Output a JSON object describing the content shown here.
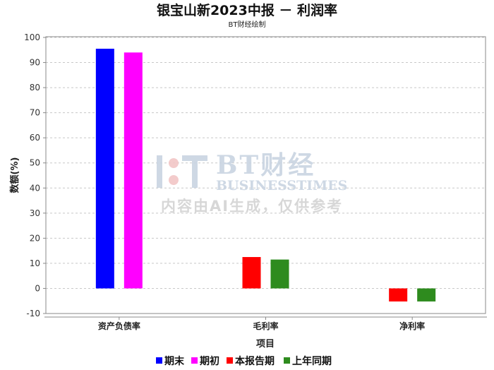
{
  "chart_data": {
    "type": "bar",
    "title": "银宝山新2023中报 － 利润率",
    "subtitle": "BT财经绘制",
    "xlabel": "项目",
    "ylabel": "数额(%)",
    "ylim": [
      -10,
      100
    ],
    "yticks": [
      -10,
      0,
      10,
      20,
      30,
      40,
      50,
      60,
      70,
      80,
      90,
      100
    ],
    "grid": true,
    "legend_position": "bottom",
    "categories": [
      "资产负债率",
      "毛利率",
      "净利率"
    ],
    "series": [
      {
        "name": "期末",
        "color": "#0000ff",
        "values": [
          95.5,
          null,
          null
        ]
      },
      {
        "name": "期初",
        "color": "#ff00ff",
        "values": [
          94.0,
          null,
          null
        ]
      },
      {
        "name": "本报告期",
        "color": "#ff0000",
        "values": [
          null,
          12.5,
          -5.2
        ]
      },
      {
        "name": "上年同期",
        "color": "#2e8b1e",
        "values": [
          null,
          11.5,
          -5.2
        ]
      }
    ]
  },
  "watermark": {
    "brand": "BT财经",
    "english": "BUSINESSTIMES",
    "notice": "内容由AI生成，仅供参考",
    "logo_icon": "bt-logo-icon"
  }
}
